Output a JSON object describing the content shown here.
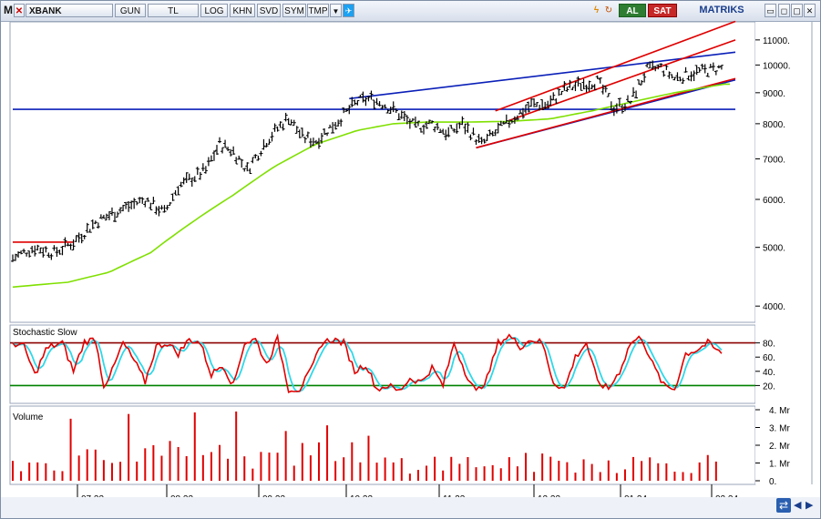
{
  "toolbar": {
    "menu_glyph": "M",
    "symbol": "XBANK",
    "buttons": [
      "GUN",
      "TL",
      "LOG",
      "KHN",
      "SVD",
      "SYM",
      "TMP"
    ],
    "buy_label": "AL",
    "sell_label": "SAT",
    "brand": "MATRIKS",
    "icons": [
      "dropdown-arrow-icon",
      "twitter-icon",
      "lightning-icon",
      "refresh-icon",
      "minimize-icon",
      "restore-icon",
      "close-icon"
    ]
  },
  "colors": {
    "price_bars": "#000000",
    "moving_average": "#7fe000",
    "trend_blue": "#0a1fb8",
    "channel_red": "#e00000",
    "stoch_k": "#e00000",
    "stoch_d": "#30d8e8",
    "stoch_upper": "#8b0000",
    "stoch_lower": "#008000",
    "volume": "#e00000"
  },
  "chart_data": [
    {
      "type": "ohlc",
      "y_scale": "log",
      "ylim": [
        3800,
        11500
      ],
      "yticks": [
        4000,
        5000,
        6000,
        7000,
        8000,
        9000,
        10000,
        11000
      ],
      "ytick_labels": [
        "4000.",
        "5000.",
        "6000.",
        "7000.",
        "8000.",
        "9000.",
        "10000.",
        "11000."
      ],
      "xtick_labels": [
        "07.23",
        "08.23",
        "09.23",
        "10.23",
        "11.23",
        "12.23",
        "01.24",
        "02.24"
      ],
      "anchors": [
        [
          0,
          4800
        ],
        [
          8,
          5000
        ],
        [
          15,
          4900
        ],
        [
          22,
          5100
        ],
        [
          30,
          5500
        ],
        [
          40,
          5800
        ],
        [
          48,
          6000
        ],
        [
          55,
          5700
        ],
        [
          60,
          6300
        ],
        [
          70,
          6700
        ],
        [
          75,
          7400
        ],
        [
          80,
          7200
        ],
        [
          85,
          6700
        ],
        [
          92,
          7500
        ],
        [
          100,
          8200
        ],
        [
          105,
          7600
        ],
        [
          110,
          7500
        ],
        [
          118,
          8100
        ],
        [
          125,
          8700
        ],
        [
          130,
          8800
        ],
        [
          135,
          8600
        ],
        [
          140,
          8300
        ],
        [
          146,
          7900
        ],
        [
          152,
          8000
        ],
        [
          158,
          7700
        ],
        [
          163,
          8000
        ],
        [
          170,
          7400
        ],
        [
          176,
          7800
        ],
        [
          182,
          8200
        ],
        [
          188,
          8600
        ],
        [
          194,
          8600
        ],
        [
          200,
          9100
        ],
        [
          206,
          9300
        ],
        [
          212,
          9400
        ],
        [
          218,
          8500
        ],
        [
          224,
          8700
        ],
        [
          230,
          9800
        ],
        [
          235,
          9900
        ],
        [
          240,
          9500
        ],
        [
          246,
          9700
        ],
        [
          252,
          9800
        ],
        [
          258,
          9900
        ]
      ],
      "moving_average": [
        [
          0,
          4300
        ],
        [
          20,
          4380
        ],
        [
          35,
          4550
        ],
        [
          50,
          4900
        ],
        [
          65,
          5500
        ],
        [
          80,
          6100
        ],
        [
          95,
          6800
        ],
        [
          110,
          7400
        ],
        [
          125,
          7800
        ],
        [
          138,
          8000
        ],
        [
          150,
          8050
        ],
        [
          165,
          8050
        ],
        [
          180,
          8070
        ],
        [
          195,
          8150
        ],
        [
          210,
          8400
        ],
        [
          225,
          8700
        ],
        [
          240,
          9000
        ],
        [
          258,
          9300
        ]
      ],
      "lines": [
        {
          "color": "blue",
          "points": [
            [
              122,
              8800
            ],
            [
              262,
              10500
            ]
          ]
        },
        {
          "color": "blue",
          "points": [
            [
              168,
              7300
            ],
            [
              262,
              9450
            ]
          ]
        },
        {
          "color": "blue",
          "points": [
            [
              0,
              8450
            ],
            [
              262,
              8450
            ]
          ]
        },
        {
          "color": "red",
          "points": [
            [
              168,
              7300
            ],
            [
              262,
              9500
            ]
          ]
        },
        {
          "color": "red",
          "points": [
            [
              175,
              8400
            ],
            [
              262,
              11800
            ]
          ]
        },
        {
          "color": "red",
          "points": [
            [
              180,
              8100
            ],
            [
              262,
              11000
            ]
          ]
        },
        {
          "color": "red",
          "points": [
            [
              0,
              5100
            ],
            [
              22,
              5100
            ]
          ]
        }
      ]
    },
    {
      "type": "line",
      "title": "Stochastic Slow",
      "ylim": [
        0,
        100
      ],
      "yticks": [
        20,
        40,
        60,
        80
      ],
      "ytick_labels": [
        "20.",
        "40.",
        "60.",
        "80."
      ],
      "levels": [
        80,
        20
      ],
      "k_anchors": [
        [
          0,
          80
        ],
        [
          4,
          75
        ],
        [
          8,
          35
        ],
        [
          12,
          70
        ],
        [
          14,
          75
        ],
        [
          18,
          80
        ],
        [
          22,
          40
        ],
        [
          26,
          82
        ],
        [
          30,
          85
        ],
        [
          33,
          20
        ],
        [
          36,
          40
        ],
        [
          40,
          80
        ],
        [
          44,
          55
        ],
        [
          48,
          25
        ],
        [
          52,
          75
        ],
        [
          56,
          80
        ],
        [
          60,
          65
        ],
        [
          64,
          85
        ],
        [
          68,
          80
        ],
        [
          72,
          35
        ],
        [
          76,
          50
        ],
        [
          80,
          20
        ],
        [
          84,
          80
        ],
        [
          88,
          85
        ],
        [
          92,
          50
        ],
        [
          96,
          85
        ],
        [
          100,
          15
        ],
        [
          104,
          15
        ],
        [
          108,
          40
        ],
        [
          112,
          80
        ],
        [
          116,
          85
        ],
        [
          120,
          80
        ],
        [
          124,
          40
        ],
        [
          128,
          50
        ],
        [
          132,
          15
        ],
        [
          136,
          20
        ],
        [
          140,
          12
        ],
        [
          144,
          30
        ],
        [
          148,
          25
        ],
        [
          152,
          45
        ],
        [
          156,
          20
        ],
        [
          160,
          80
        ],
        [
          164,
          40
        ],
        [
          168,
          10
        ],
        [
          172,
          30
        ],
        [
          176,
          80
        ],
        [
          180,
          90
        ],
        [
          184,
          75
        ],
        [
          188,
          85
        ],
        [
          192,
          80
        ],
        [
          196,
          25
        ],
        [
          200,
          15
        ],
        [
          204,
          60
        ],
        [
          208,
          80
        ],
        [
          212,
          25
        ],
        [
          216,
          15
        ],
        [
          220,
          40
        ],
        [
          224,
          80
        ],
        [
          228,
          88
        ],
        [
          232,
          50
        ],
        [
          236,
          20
        ],
        [
          240,
          15
        ],
        [
          244,
          65
        ],
        [
          248,
          70
        ],
        [
          252,
          80
        ],
        [
          256,
          67
        ]
      ],
      "d_lengths_note": ""
    },
    {
      "type": "bar",
      "title": "Volume",
      "ylim": [
        0,
        4
      ],
      "yticks": [
        0,
        1,
        2,
        3,
        4
      ],
      "ytick_labels": [
        "0.",
        "1. Mr",
        "2. Mr",
        "3. Mr",
        "4. Mr"
      ]
    }
  ]
}
